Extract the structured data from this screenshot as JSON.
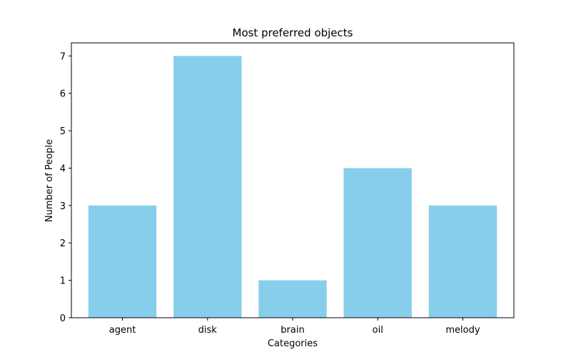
{
  "chart_data": {
    "type": "bar",
    "title": "Most preferred objects",
    "xlabel": "Categories",
    "ylabel": "Number of People",
    "categories": [
      "agent",
      "disk",
      "brain",
      "oil",
      "melody"
    ],
    "values": [
      3,
      7,
      1,
      4,
      3
    ],
    "ylim": [
      0,
      7.35
    ],
    "yticks": [
      0,
      1,
      2,
      3,
      4,
      5,
      6,
      7
    ],
    "bar_color": "#87ceeb",
    "grid": false,
    "legend": "none"
  }
}
